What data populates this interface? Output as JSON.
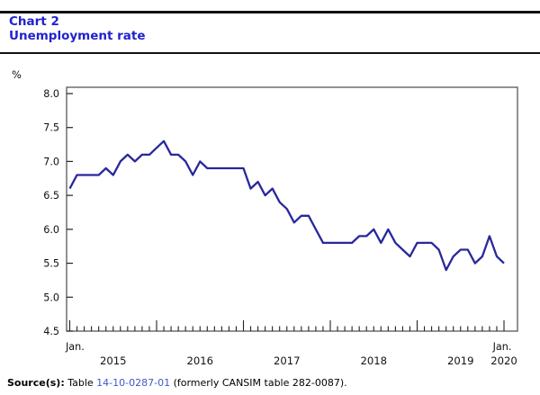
{
  "header": {
    "chart_label": "Chart 2",
    "title": "Unemployment rate"
  },
  "colors": {
    "title_blue": "#2222CC",
    "line_navy": "#28289B",
    "link_blue": "#3B5BC7",
    "axis_dark": "#333333"
  },
  "source": {
    "prefix": "Source(s):",
    "table_word": "Table",
    "table_link": "14-10-0287-01",
    "suffix": "(formerly CANSIM table 282-0087)."
  },
  "chart_data": {
    "type": "line",
    "title": "Unemployment rate",
    "ylabel": "%",
    "ylim": [
      4.5,
      8.0
    ],
    "yticks": [
      "8.0",
      "7.5",
      "7.0",
      "6.5",
      "6.0",
      "5.5",
      "5.0",
      "4.5"
    ],
    "grid": false,
    "legend": "none",
    "x_start": "2015-01",
    "x_end": "2020-01",
    "frequency": "monthly",
    "x_first_tick_label": "Jan.",
    "x_last_tick_label": "Jan.",
    "x_year_labels": [
      "2015",
      "2016",
      "2017",
      "2018",
      "2019",
      "2020"
    ],
    "series": [
      {
        "name": "Unemployment rate (%)",
        "values": [
          6.6,
          6.8,
          6.8,
          6.8,
          6.8,
          6.9,
          6.8,
          7.0,
          7.1,
          7.0,
          7.1,
          7.1,
          7.2,
          7.3,
          7.1,
          7.1,
          7.0,
          6.8,
          7.0,
          6.9,
          6.9,
          6.9,
          6.9,
          6.9,
          6.9,
          6.6,
          6.7,
          6.5,
          6.6,
          6.4,
          6.3,
          6.1,
          6.2,
          6.2,
          6.0,
          5.8,
          5.8,
          5.8,
          5.8,
          5.8,
          5.9,
          5.9,
          6.0,
          5.8,
          6.0,
          5.8,
          5.7,
          5.6,
          5.8,
          5.8,
          5.8,
          5.7,
          5.4,
          5.6,
          5.7,
          5.7,
          5.5,
          5.6,
          5.9,
          5.6,
          5.5
        ]
      }
    ]
  }
}
